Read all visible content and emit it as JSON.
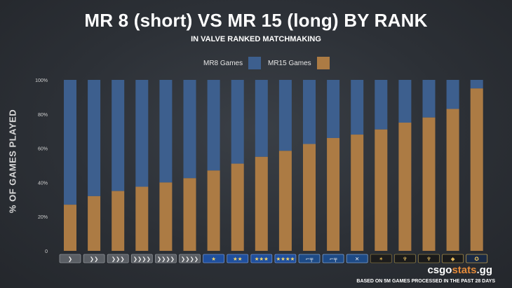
{
  "header": {
    "title": "MR 8 (short) VS MR 15 (long) BY RANK",
    "subtitle": "IN VALVE RANKED MATCHMAKING"
  },
  "chart_data": {
    "type": "bar",
    "stacked": true,
    "ylabel": "% OF GAMES PLAYED",
    "ylim": [
      0,
      100
    ],
    "yticks": [
      "0",
      "20%",
      "40%",
      "60%",
      "80%",
      "100%"
    ],
    "ytick_values": [
      0,
      20,
      40,
      60,
      80,
      100
    ],
    "categories": [
      "Silver I",
      "Silver II",
      "Silver III",
      "Silver IV",
      "Silver Elite",
      "Silver Elite Master",
      "Gold Nova I",
      "Gold Nova II",
      "Gold Nova III",
      "Gold Nova Master",
      "Master Guardian I",
      "Master Guardian II",
      "Master Guardian Elite",
      "Distinguished Master Guardian",
      "Legendary Eagle",
      "Legendary Eagle Master",
      "Supreme Master First Class",
      "The Global Elite"
    ],
    "series": [
      {
        "name": "MR8 Games",
        "color": "#3d5f8e",
        "values": [
          73,
          68,
          65,
          62.5,
          60,
          57.5,
          53,
          49,
          45,
          41.5,
          37.5,
          34,
          32,
          29,
          25,
          22,
          17,
          5
        ]
      },
      {
        "name": "MR15 Games",
        "color": "#ac7b44",
        "values": [
          27,
          32,
          35,
          37.5,
          40,
          42.5,
          47,
          51,
          55,
          58.5,
          62.5,
          66,
          68,
          71,
          75,
          78,
          83,
          95
        ]
      }
    ],
    "legend": "top-center",
    "grid": false
  },
  "rank_icons": [
    {
      "icon": "silver-1-rank-icon",
      "kind": "silver",
      "glyph": "❯"
    },
    {
      "icon": "silver-2-rank-icon",
      "kind": "silver",
      "glyph": "❯❯"
    },
    {
      "icon": "silver-3-rank-icon",
      "kind": "silver",
      "glyph": "❯❯❯"
    },
    {
      "icon": "silver-4-rank-icon",
      "kind": "silver",
      "glyph": "❯❯❯❯"
    },
    {
      "icon": "silver-elite-rank-icon",
      "kind": "silver",
      "glyph": "❯❯❯❯"
    },
    {
      "icon": "silver-elite-master-rank-icon",
      "kind": "silver",
      "glyph": "❯❯❯❯"
    },
    {
      "icon": "gold-nova-1-rank-icon",
      "kind": "nova",
      "glyph": "★"
    },
    {
      "icon": "gold-nova-2-rank-icon",
      "kind": "nova",
      "glyph": "★★"
    },
    {
      "icon": "gold-nova-3-rank-icon",
      "kind": "nova",
      "glyph": "★★★"
    },
    {
      "icon": "gold-nova-master-rank-icon",
      "kind": "nova",
      "glyph": "★★★★"
    },
    {
      "icon": "master-guardian-1-rank-icon",
      "kind": "mg",
      "glyph": "⌐╤"
    },
    {
      "icon": "master-guardian-2-rank-icon",
      "kind": "mg",
      "glyph": "⌐╤"
    },
    {
      "icon": "master-guardian-elite-rank-icon",
      "kind": "mg",
      "glyph": "✕"
    },
    {
      "icon": "distinguished-master-guardian-rank-icon",
      "kind": "dmg",
      "glyph": "✶"
    },
    {
      "icon": "legendary-eagle-rank-icon",
      "kind": "eagle",
      "glyph": "♆"
    },
    {
      "icon": "legendary-eagle-master-rank-icon",
      "kind": "eagle",
      "glyph": "♆"
    },
    {
      "icon": "supreme-master-rank-icon",
      "kind": "supreme",
      "glyph": "◆"
    },
    {
      "icon": "global-elite-rank-icon",
      "kind": "global",
      "glyph": "✪"
    }
  ],
  "brand": {
    "prefix": "csgo",
    "accent": "stats",
    "suffix": ".gg",
    "accent_color": "#e48a3a"
  },
  "footnote": "BASED ON 5M GAMES PROCESSED IN THE PAST 28 DAYS"
}
